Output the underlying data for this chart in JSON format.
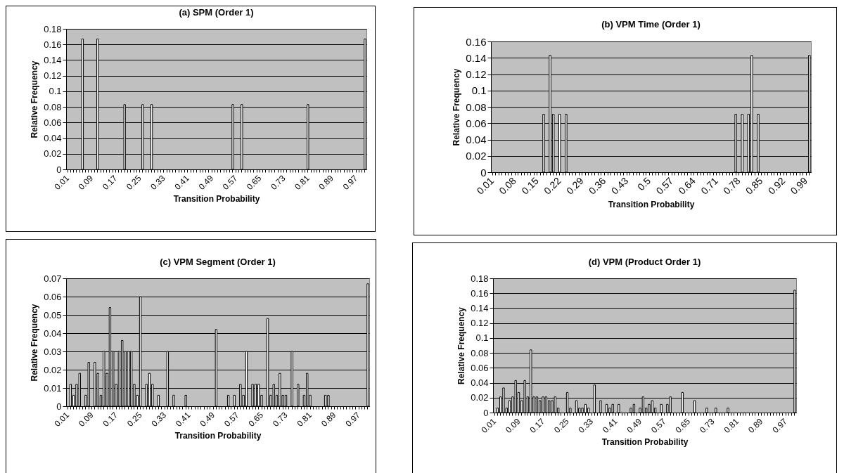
{
  "chart_data": [
    {
      "type": "bar",
      "title": "(a) SPM (Order 1)",
      "xlabel": "Transition Probability",
      "ylabel": "Relative Frequency",
      "color": "#ffffff",
      "grid": "y",
      "ylim": [
        0,
        0.18
      ],
      "yticks": [
        0,
        0.02,
        0.04,
        0.06,
        0.08,
        0.1,
        0.12,
        0.14,
        0.16,
        0.18
      ],
      "categories": [
        "0.01",
        null,
        null,
        null,
        null,
        null,
        null,
        null,
        "0.09",
        null,
        null,
        null,
        null,
        null,
        null,
        null,
        "0.17",
        null,
        null,
        null,
        null,
        null,
        null,
        null,
        "0.25",
        null,
        null,
        null,
        null,
        null,
        null,
        null,
        "0.33",
        null,
        null,
        null,
        null,
        null,
        null,
        null,
        "0.41",
        null,
        null,
        null,
        null,
        null,
        null,
        null,
        "0.49",
        null,
        null,
        null,
        null,
        null,
        null,
        null,
        "0.57",
        null,
        null,
        null,
        null,
        null,
        null,
        null,
        "0.65",
        null,
        null,
        null,
        null,
        null,
        null,
        null,
        "0.73",
        null,
        null,
        null,
        null,
        null,
        null,
        null,
        "0.81",
        null,
        null,
        null,
        null,
        null,
        null,
        null,
        "0.89",
        null,
        null,
        null,
        null,
        null,
        null,
        null,
        "0.97",
        null,
        null,
        null
      ],
      "values": [
        null,
        null,
        null,
        null,
        null,
        0.167,
        null,
        null,
        null,
        null,
        0.167,
        null,
        null,
        null,
        null,
        null,
        null,
        null,
        null,
        0.083,
        null,
        null,
        null,
        null,
        null,
        0.083,
        null,
        null,
        0.083,
        null,
        null,
        null,
        null,
        null,
        null,
        null,
        null,
        null,
        null,
        null,
        null,
        null,
        null,
        null,
        null,
        null,
        null,
        null,
        null,
        null,
        null,
        null,
        null,
        null,
        null,
        0.083,
        null,
        null,
        0.083,
        null,
        null,
        null,
        null,
        null,
        null,
        null,
        null,
        null,
        null,
        null,
        null,
        null,
        null,
        null,
        null,
        null,
        null,
        null,
        null,
        null,
        0.083,
        null,
        null,
        null,
        null,
        null,
        null,
        null,
        null,
        null,
        null,
        null,
        null,
        null,
        null,
        null,
        null,
        null,
        null,
        0.167
      ]
    },
    {
      "type": "bar",
      "title": "(b) VPM Time (Order 1)",
      "xlabel": "Transition Probability",
      "ylabel": "Relative Frequency",
      "color": "#ffffff",
      "grid": "y",
      "ylim": [
        0,
        0.16
      ],
      "yticks": [
        0,
        0.02,
        0.04,
        0.06,
        0.08,
        0.1,
        0.12,
        0.14,
        0.16
      ],
      "categories": [
        "0.01",
        null,
        null,
        null,
        null,
        null,
        null,
        "0.08",
        null,
        null,
        null,
        null,
        null,
        null,
        "0.15",
        null,
        null,
        null,
        null,
        null,
        null,
        "0.22",
        null,
        null,
        null,
        null,
        null,
        null,
        "0.29",
        null,
        null,
        null,
        null,
        null,
        null,
        "0.36",
        null,
        null,
        null,
        null,
        null,
        null,
        "0.43",
        null,
        null,
        null,
        null,
        null,
        null,
        "0.5",
        null,
        null,
        null,
        null,
        null,
        null,
        "0.57",
        null,
        null,
        null,
        null,
        null,
        null,
        "0.64",
        null,
        null,
        null,
        null,
        null,
        null,
        "0.71",
        null,
        null,
        null,
        null,
        null,
        null,
        "0.78",
        null,
        null,
        null,
        null,
        null,
        null,
        "0.85",
        null,
        null,
        null,
        null,
        null,
        null,
        "0.92",
        null,
        null,
        null,
        null,
        null,
        null,
        "0.99",
        null
      ],
      "values": [
        null,
        null,
        null,
        null,
        null,
        null,
        null,
        null,
        null,
        null,
        null,
        null,
        null,
        null,
        null,
        null,
        0.071,
        null,
        0.143,
        0.071,
        null,
        0.071,
        null,
        0.071,
        null,
        null,
        null,
        null,
        null,
        null,
        null,
        null,
        null,
        null,
        null,
        null,
        null,
        null,
        null,
        null,
        null,
        null,
        null,
        null,
        null,
        null,
        null,
        null,
        null,
        null,
        null,
        null,
        null,
        null,
        null,
        null,
        null,
        null,
        null,
        null,
        null,
        null,
        null,
        null,
        null,
        null,
        null,
        null,
        null,
        null,
        null,
        null,
        null,
        null,
        null,
        null,
        0.071,
        null,
        0.071,
        null,
        0.071,
        0.143,
        null,
        0.071,
        null,
        null,
        null,
        null,
        null,
        null,
        null,
        null,
        null,
        null,
        null,
        null,
        null,
        null,
        null,
        0.143
      ]
    },
    {
      "type": "bar",
      "title": "(c) VPM Segment (Order 1)",
      "xlabel": "Transition Probability",
      "ylabel": "Relative Frequency",
      "color": "#ffffff",
      "grid": "y",
      "ylim": [
        0,
        0.07
      ],
      "yticks": [
        0,
        0.01,
        0.02,
        0.03,
        0.04,
        0.05,
        0.06,
        0.07
      ],
      "categories": [
        "0.01",
        null,
        null,
        null,
        null,
        null,
        null,
        null,
        "0.09",
        null,
        null,
        null,
        null,
        null,
        null,
        null,
        "0.17",
        null,
        null,
        null,
        null,
        null,
        null,
        null,
        "0.25",
        null,
        null,
        null,
        null,
        null,
        null,
        null,
        "0.33",
        null,
        null,
        null,
        null,
        null,
        null,
        null,
        "0.41",
        null,
        null,
        null,
        null,
        null,
        null,
        null,
        "0.49",
        null,
        null,
        null,
        null,
        null,
        null,
        null,
        "0.57",
        null,
        null,
        null,
        null,
        null,
        null,
        null,
        "0.65",
        null,
        null,
        null,
        null,
        null,
        null,
        null,
        "0.73",
        null,
        null,
        null,
        null,
        null,
        null,
        null,
        "0.81",
        null,
        null,
        null,
        null,
        null,
        null,
        null,
        "0.89",
        null,
        null,
        null,
        null,
        null,
        null,
        null,
        "0.97",
        null,
        null,
        null
      ],
      "values": [
        null,
        0.012,
        0.006,
        0.012,
        0.018,
        null,
        0.006,
        0.024,
        null,
        0.024,
        0.018,
        0.006,
        0.03,
        0.018,
        0.054,
        0.03,
        0.012,
        0.03,
        0.036,
        0.03,
        0.03,
        0.03,
        0.012,
        0.006,
        0.06,
        null,
        0.012,
        0.018,
        0.012,
        null,
        0.006,
        null,
        null,
        0.03,
        null,
        0.006,
        null,
        null,
        null,
        0.006,
        null,
        null,
        null,
        null,
        null,
        null,
        null,
        null,
        null,
        0.042,
        null,
        null,
        null,
        0.006,
        null,
        0.006,
        null,
        0.012,
        0.006,
        0.03,
        null,
        0.012,
        0.012,
        0.012,
        0.006,
        null,
        0.048,
        0.006,
        0.012,
        0.006,
        0.018,
        0.006,
        0.006,
        null,
        0.03,
        null,
        0.012,
        null,
        0.006,
        0.018,
        0.006,
        null,
        null,
        null,
        null,
        0.006,
        0.006,
        null,
        null,
        null,
        null,
        null,
        null,
        null,
        null,
        null,
        null,
        null,
        null,
        0.067
      ]
    },
    {
      "type": "bar",
      "title": "(d) VPM (Product Order 1)",
      "xlabel": "Transition Probability",
      "ylabel": "Relative Frequency",
      "color": "#ffffff",
      "grid": "y",
      "ylim": [
        0,
        0.18
      ],
      "yticks": [
        0,
        0.02,
        0.04,
        0.06,
        0.08,
        0.1,
        0.12,
        0.14,
        0.16,
        0.18
      ],
      "categories": [
        "0.01",
        null,
        null,
        null,
        null,
        null,
        null,
        null,
        "0.09",
        null,
        null,
        null,
        null,
        null,
        null,
        null,
        "0.17",
        null,
        null,
        null,
        null,
        null,
        null,
        null,
        "0.25",
        null,
        null,
        null,
        null,
        null,
        null,
        null,
        "0.33",
        null,
        null,
        null,
        null,
        null,
        null,
        null,
        "0.41",
        null,
        null,
        null,
        null,
        null,
        null,
        null,
        "0.49",
        null,
        null,
        null,
        null,
        null,
        null,
        null,
        "0.57",
        null,
        null,
        null,
        null,
        null,
        null,
        null,
        "0.65",
        null,
        null,
        null,
        null,
        null,
        null,
        null,
        "0.73",
        null,
        null,
        null,
        null,
        null,
        null,
        null,
        "0.81",
        null,
        null,
        null,
        null,
        null,
        null,
        null,
        "0.89",
        null,
        null,
        null,
        null,
        null,
        null,
        null,
        "0.97",
        null,
        null,
        null
      ],
      "values": [
        null,
        0.006,
        0.021,
        0.033,
        0.006,
        0.016,
        0.021,
        0.043,
        0.027,
        0.016,
        0.043,
        0.021,
        0.084,
        0.021,
        0.021,
        0.016,
        0.021,
        0.021,
        0.016,
        0.016,
        0.021,
        0.006,
        null,
        null,
        0.027,
        0.006,
        null,
        0.016,
        0.006,
        0.006,
        0.011,
        0.006,
        null,
        0.037,
        null,
        0.016,
        null,
        0.011,
        0.006,
        0.011,
        null,
        0.011,
        null,
        null,
        null,
        0.006,
        0.011,
        null,
        0.006,
        0.021,
        0.006,
        0.011,
        0.016,
        0.006,
        null,
        0.011,
        null,
        0.011,
        0.021,
        null,
        null,
        null,
        0.027,
        null,
        null,
        null,
        0.016,
        null,
        null,
        null,
        0.006,
        null,
        null,
        0.006,
        null,
        null,
        null,
        0.006,
        null,
        null,
        null,
        null,
        null,
        null,
        null,
        null,
        null,
        null,
        null,
        null,
        null,
        null,
        null,
        null,
        null,
        null,
        null,
        null,
        null,
        0.164
      ]
    }
  ]
}
